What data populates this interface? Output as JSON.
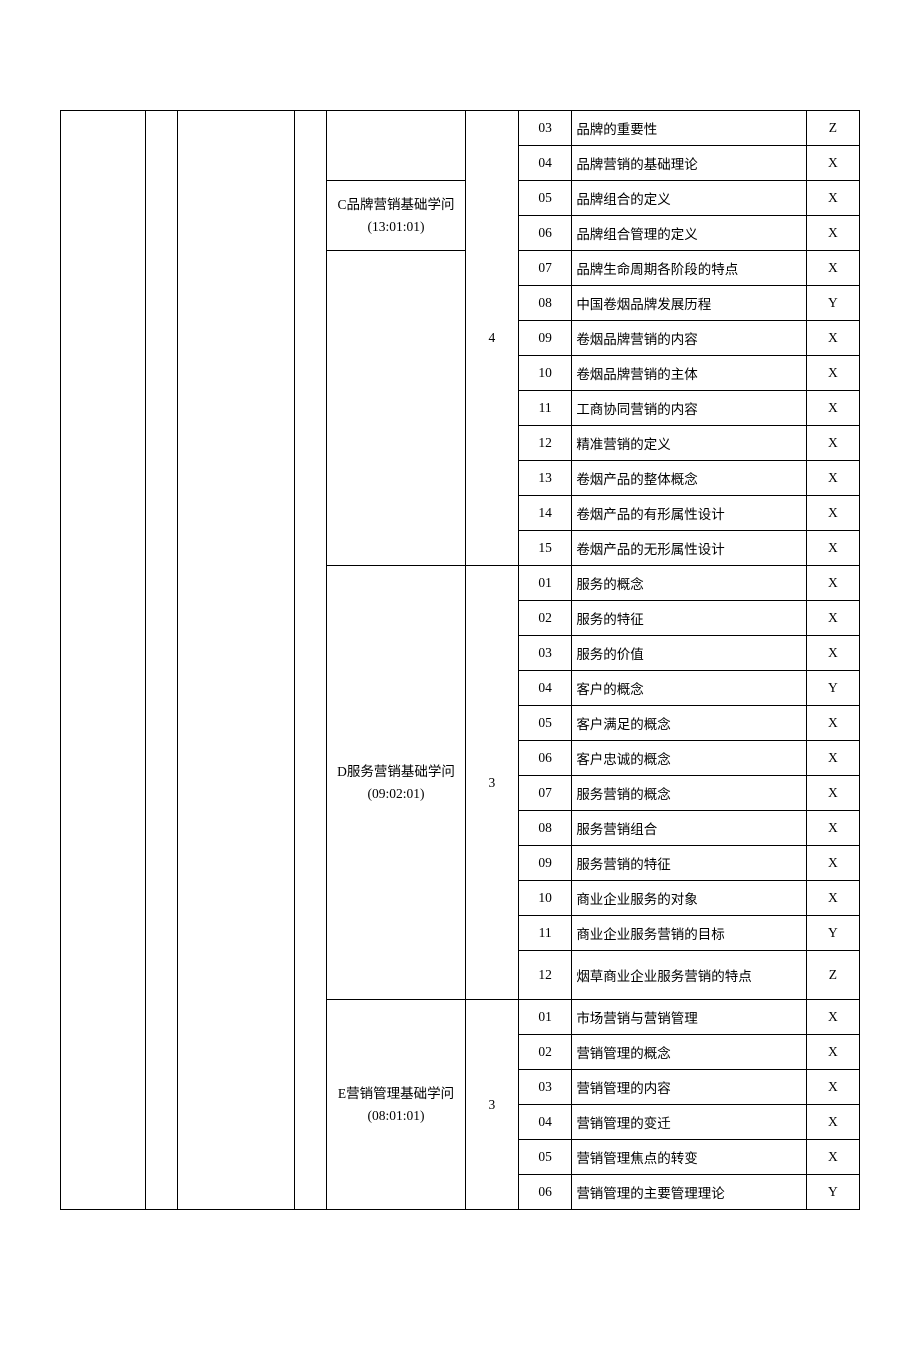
{
  "background_color": "#ffffff",
  "border_color": "#000000",
  "text_color": "#000000",
  "font_family": "SimSun",
  "font_size_pt": 12,
  "sections": [
    {
      "label": "C品牌营销基础学问(13:01:01)",
      "weight": "4",
      "weight_rowspan": 15,
      "empty_lead_rows": 2,
      "label_rowspan": 2,
      "continues_from_prev_page_rows": 13,
      "rows": [
        {
          "idx": "03",
          "desc": "品牌的重要性",
          "code": "Z"
        },
        {
          "idx": "04",
          "desc": "品牌营销的基础理论",
          "code": "X"
        },
        {
          "idx": "05",
          "desc": "品牌组合的定义",
          "code": "X"
        },
        {
          "idx": "06",
          "desc": "品牌组合管理的定义",
          "code": "X"
        },
        {
          "idx": "07",
          "desc": "品牌生命周期各阶段的特点",
          "code": "X"
        },
        {
          "idx": "08",
          "desc": "中国卷烟品牌发展历程",
          "code": "Y"
        },
        {
          "idx": "09",
          "desc": "卷烟品牌营销的内容",
          "code": "X"
        },
        {
          "idx": "10",
          "desc": "卷烟品牌营销的主体",
          "code": "X"
        },
        {
          "idx": "11",
          "desc": "工商协同营销的内容",
          "code": "X"
        },
        {
          "idx": "12",
          "desc": "精准营销的定义",
          "code": "X"
        },
        {
          "idx": "13",
          "desc": "卷烟产品的整体概念",
          "code": "X"
        },
        {
          "idx": "14",
          "desc": "卷烟产品的有形属性设计",
          "code": "X"
        },
        {
          "idx": "15",
          "desc": "卷烟产品的无形属性设计",
          "code": "X"
        }
      ]
    },
    {
      "label": "D服务营销基础学问(09:02:01)",
      "weight": "3",
      "rowspan": 12,
      "rows": [
        {
          "idx": "01",
          "desc": "服务的概念",
          "code": "X"
        },
        {
          "idx": "02",
          "desc": "服务的特征",
          "code": "X"
        },
        {
          "idx": "03",
          "desc": "服务的价值",
          "code": "X"
        },
        {
          "idx": "04",
          "desc": "客户的概念",
          "code": "Y"
        },
        {
          "idx": "05",
          "desc": "客户满足的概念",
          "code": "X"
        },
        {
          "idx": "06",
          "desc": "客户忠诚的概念",
          "code": "X"
        },
        {
          "idx": "07",
          "desc": "服务营销的概念",
          "code": "X"
        },
        {
          "idx": "08",
          "desc": "服务营销组合",
          "code": "X"
        },
        {
          "idx": "09",
          "desc": "服务营销的特征",
          "code": "X"
        },
        {
          "idx": "10",
          "desc": "商业企业服务的对象",
          "code": "X"
        },
        {
          "idx": "11",
          "desc": "商业企业服务营销的目标",
          "code": "Y"
        },
        {
          "idx": "12",
          "desc": "烟草商业企业服务营销的特点",
          "code": "Z",
          "tall": true
        }
      ]
    },
    {
      "label": "E营销管理基础学问(08:01:01)",
      "weight": "3",
      "rowspan": 6,
      "rows": [
        {
          "idx": "01",
          "desc": "市场营销与营销管理",
          "code": "X"
        },
        {
          "idx": "02",
          "desc": "营销管理的概念",
          "code": "X"
        },
        {
          "idx": "03",
          "desc": "营销管理的内容",
          "code": "X"
        },
        {
          "idx": "04",
          "desc": "营销管理的变迁",
          "code": "X"
        },
        {
          "idx": "05",
          "desc": "营销管理焦点的转变",
          "code": "X"
        },
        {
          "idx": "06",
          "desc": "营销管理的主要管理理论",
          "code": "Y"
        }
      ]
    }
  ]
}
